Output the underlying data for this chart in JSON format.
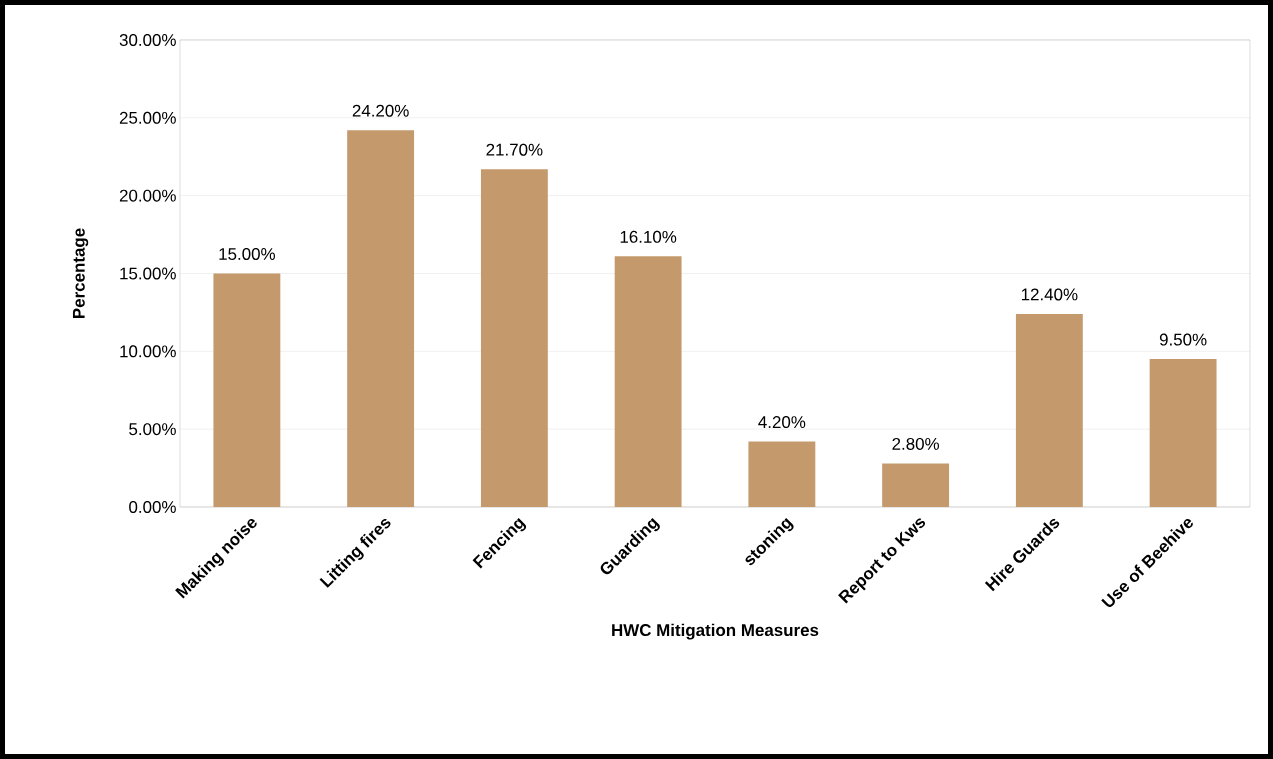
{
  "chart_data": {
    "type": "bar",
    "xlabel": "HWC Mitigation Measures",
    "ylabel": "Percentage",
    "categories": [
      "Making noise",
      "Litting fires",
      "Fencing",
      "Guarding",
      "stoning",
      "Report to Kws",
      "Hire Guards",
      "Use of Beehive"
    ],
    "values": [
      15.0,
      24.2,
      21.7,
      16.1,
      4.2,
      2.8,
      12.4,
      9.5
    ],
    "value_labels": [
      "15.00%",
      "24.20%",
      "21.70%",
      "16.10%",
      "4.20%",
      "2.80%",
      "12.40%",
      "9.50%"
    ],
    "color": "#c4996b",
    "ylim": [
      0,
      30
    ],
    "yticks": [
      {
        "value": 0,
        "label": "0.00%"
      },
      {
        "value": 5,
        "label": "5.00%"
      },
      {
        "value": 10,
        "label": "10.00%"
      },
      {
        "value": 15,
        "label": "15.00%"
      },
      {
        "value": 20,
        "label": "20.00%"
      },
      {
        "value": 25,
        "label": "25.00%"
      },
      {
        "value": 30,
        "label": "30.00%"
      }
    ],
    "grid": "y"
  }
}
